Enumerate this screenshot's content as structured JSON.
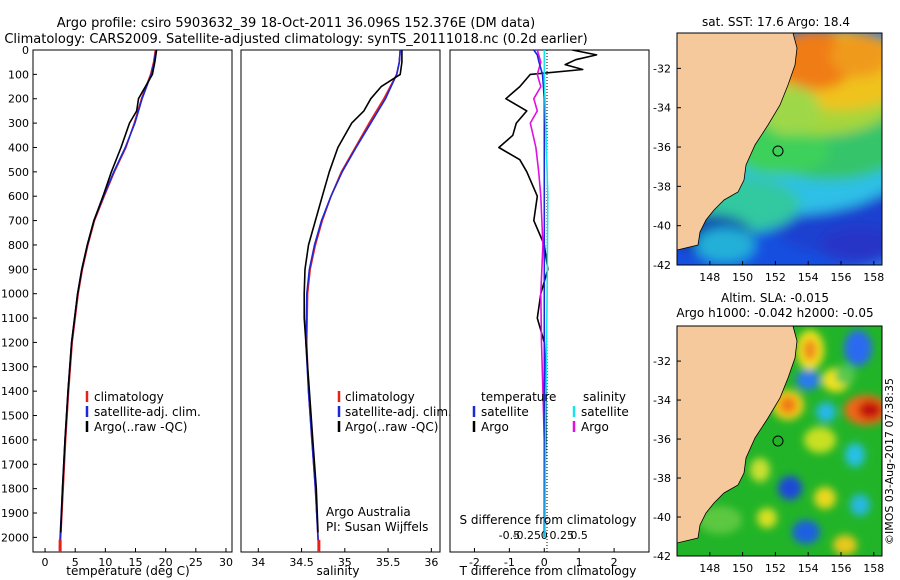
{
  "header": {
    "line1": "Argo profile: csiro 5903632_39 18-Oct-2011 36.096S 152.376E (DM data)",
    "line2": "Climatology: CARS2009. Satellite-adjusted climatology: synTS_20111018.nc (0.2d earlier)"
  },
  "colors": {
    "climatology": "#e8201c",
    "satellite": "#1a28d8",
    "argo": "#000000",
    "argo_salinity": "#e010e0",
    "satellite_salinity": "#18e6e6",
    "land": "#f6c99c"
  },
  "chart_data": [
    {
      "type": "line",
      "name": "temperature-profile",
      "xlabel": "temperature (deg C)",
      "xlim": [
        -2,
        31
      ],
      "ylim": [
        2060,
        0
      ],
      "xticks": [
        "0",
        "5",
        "10",
        "15",
        "20",
        "25",
        "30"
      ],
      "yticks": [
        "0",
        "100",
        "200",
        "300",
        "400",
        "500",
        "600",
        "700",
        "800",
        "900",
        "1000",
        "1100",
        "1200",
        "1300",
        "1400",
        "1500",
        "1600",
        "1700",
        "1800",
        "1900",
        "2000"
      ],
      "legend": [
        "climatology",
        "satellite-adj. clim.",
        "Argo(..raw -QC)"
      ],
      "series": [
        {
          "name": "climatology",
          "depth": [
            0,
            50,
            100,
            200,
            300,
            400,
            500,
            600,
            700,
            800,
            900,
            1000,
            1200,
            1400,
            1600,
            1800,
            2000,
            2050
          ],
          "values": [
            18.3,
            18.0,
            17.5,
            16.0,
            14.8,
            13.4,
            11.5,
            9.8,
            8.2,
            7.1,
            6.2,
            5.5,
            4.5,
            3.9,
            3.4,
            3.0,
            2.6,
            2.5
          ]
        },
        {
          "name": "satellite-adj. clim.",
          "depth": [
            0,
            50,
            100,
            200,
            300,
            400,
            500,
            600,
            700,
            800,
            900,
            1000,
            1200,
            1400,
            1600,
            1800,
            2000,
            2050
          ],
          "values": [
            18.4,
            18.1,
            17.6,
            16.1,
            14.9,
            13.3,
            11.4,
            9.7,
            8.1,
            7.0,
            6.1,
            5.4,
            4.4,
            3.8,
            3.3,
            2.9,
            2.5,
            2.4
          ]
        },
        {
          "name": "Argo(..raw -QC)",
          "depth": [
            0,
            50,
            100,
            200,
            250,
            300,
            400,
            500,
            600,
            700,
            800,
            900,
            1000,
            1200,
            1400,
            1600,
            1800,
            1980
          ],
          "values": [
            18.5,
            18.2,
            17.8,
            15.5,
            15.2,
            14.0,
            12.6,
            11.0,
            9.6,
            8.1,
            7.0,
            6.1,
            5.4,
            4.4,
            3.8,
            3.3,
            2.9,
            2.6
          ]
        }
      ]
    },
    {
      "type": "line",
      "name": "salinity-profile",
      "xlabel": "salinity",
      "xlim": [
        33.8,
        36.1
      ],
      "ylim": [
        2060,
        0
      ],
      "xticks": [
        "34",
        "34.5",
        "35",
        "35.5",
        "36"
      ],
      "legend": [
        "climatology",
        "satellite-adj. clim.",
        "Argo(..raw -QC)"
      ],
      "annotation": [
        "Argo Australia",
        "PI: Susan Wijffels"
      ],
      "series": [
        {
          "name": "climatology",
          "depth": [
            0,
            50,
            100,
            200,
            300,
            400,
            500,
            600,
            700,
            800,
            900,
            1000,
            1200,
            1400,
            1600,
            1800,
            2000,
            2050
          ],
          "values": [
            35.64,
            35.63,
            35.6,
            35.45,
            35.28,
            35.12,
            34.96,
            34.84,
            34.74,
            34.66,
            34.6,
            34.57,
            34.56,
            34.58,
            34.62,
            34.66,
            34.69,
            34.7
          ]
        },
        {
          "name": "satellite-adj. clim.",
          "depth": [
            0,
            50,
            100,
            200,
            300,
            400,
            500,
            600,
            700,
            800,
            900,
            1000,
            1200,
            1400,
            1600,
            1800,
            2000,
            2050
          ],
          "values": [
            35.64,
            35.63,
            35.6,
            35.47,
            35.3,
            35.13,
            34.97,
            34.84,
            34.73,
            34.65,
            34.59,
            34.56,
            34.55,
            34.58,
            34.62,
            34.66,
            34.69,
            34.7
          ]
        },
        {
          "name": "Argo(..raw -QC)",
          "depth": [
            0,
            50,
            100,
            150,
            200,
            250,
            300,
            400,
            500,
            600,
            700,
            800,
            900,
            1000,
            1100,
            1200,
            1400,
            1600,
            1800,
            1980
          ],
          "values": [
            35.66,
            35.66,
            35.64,
            35.42,
            35.3,
            35.22,
            35.08,
            34.92,
            34.82,
            34.74,
            34.66,
            34.58,
            34.54,
            34.53,
            34.53,
            34.55,
            34.59,
            34.63,
            34.67,
            34.69
          ]
        }
      ]
    },
    {
      "type": "line",
      "name": "difference-profile",
      "xlabel_bottom": "T difference from climatology",
      "xlabel_top": "S difference from climatology",
      "xlim": [
        -2.7,
        3.0
      ],
      "ylim": [
        2060,
        0
      ],
      "xticks_T": [
        "-2",
        "-1",
        "0",
        "1",
        "2"
      ],
      "xticks_S": [
        "-0.5",
        "-0.25",
        "0",
        "0.25",
        "0.5"
      ],
      "legend_temperature": [
        "temperature",
        "satellite",
        "Argo"
      ],
      "legend_salinity": [
        "salinity",
        "satellite",
        "Argo"
      ],
      "series": [
        {
          "name": "temperature satellite",
          "depth": [
            0,
            20,
            50,
            100,
            200,
            400,
            600,
            800,
            1000,
            1400,
            1800,
            2000
          ],
          "values": [
            -0.3,
            -0.2,
            -0.15,
            -0.05,
            0,
            0,
            0,
            0,
            0,
            0,
            0,
            0
          ]
        },
        {
          "name": "temperature Argo",
          "depth": [
            0,
            20,
            40,
            60,
            80,
            100,
            150,
            200,
            250,
            300,
            350,
            400,
            450,
            500,
            600,
            700,
            800,
            900,
            1000,
            1100,
            1200,
            1400,
            1600,
            1800,
            1980
          ],
          "values": [
            0.8,
            1.5,
            0.9,
            0.6,
            1.1,
            -0.4,
            -0.7,
            -1.1,
            -0.5,
            -0.8,
            -0.9,
            -1.3,
            -0.7,
            -0.5,
            -0.2,
            -0.3,
            0,
            0.1,
            -0.1,
            -0.2,
            0,
            0.05,
            0.05,
            0,
            0
          ]
        },
        {
          "name": "salinity satellite",
          "depth": [
            0,
            100,
            300,
            600,
            1000,
            1500,
            2000
          ],
          "values": [
            0.0,
            0.0,
            0.02,
            0.05,
            0.04,
            0.02,
            0.01
          ]
        },
        {
          "name": "salinity Argo",
          "depth": [
            0,
            50,
            100,
            150,
            200,
            250,
            300,
            400,
            500,
            600,
            800,
            1000,
            1200,
            1400,
            1600,
            1800,
            1980
          ],
          "values": [
            -0.1,
            -0.05,
            -0.1,
            -0.05,
            -0.15,
            -0.1,
            -0.2,
            -0.12,
            -0.08,
            -0.05,
            -0.02,
            -0.05,
            -0.04,
            -0.02,
            0,
            0,
            0
          ]
        }
      ]
    },
    {
      "type": "heatmap",
      "name": "sst-map",
      "title": "sat. SST: 17.6  Argo: 18.4",
      "xticks": [
        "148",
        "150",
        "152",
        "154",
        "156",
        "158"
      ],
      "yticks": [
        "-32",
        "-34",
        "-36",
        "-38",
        "-40",
        "-42"
      ],
      "xlim": [
        146,
        158.5
      ],
      "ylim": [
        -42,
        -30.2
      ],
      "marker": {
        "lon": 152.376,
        "lat": -36.096
      }
    },
    {
      "type": "heatmap",
      "name": "sla-map",
      "title_line1": "Altim. SLA: -0.015",
      "title_line2": "Argo h1000: -0.042  h2000: -0.05",
      "xticks": [
        "148",
        "150",
        "152",
        "154",
        "156",
        "158"
      ],
      "yticks": [
        "-32",
        "-34",
        "-36",
        "-38",
        "-40",
        "-42"
      ],
      "xlim": [
        146,
        158.5
      ],
      "ylim": [
        -42,
        -30.2
      ],
      "marker": {
        "lon": 152.376,
        "lat": -36.096
      }
    }
  ],
  "footer": {
    "stamp": "©IMOS 03-Aug-2017 07:38:35"
  }
}
